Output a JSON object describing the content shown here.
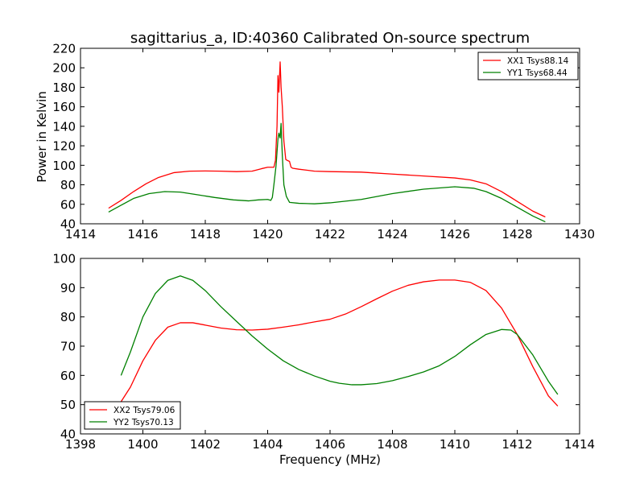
{
  "chart_data": [
    {
      "type": "line",
      "title": "sagittarius_a, ID:40360 Calibrated On-source spectrum",
      "xlabel": "",
      "ylabel": "Power in Kelvin",
      "xlim": [
        1414,
        1430
      ],
      "ylim": [
        40,
        220
      ],
      "xticks": [
        1414,
        1416,
        1418,
        1420,
        1422,
        1424,
        1426,
        1428,
        1430
      ],
      "yticks": [
        40,
        60,
        80,
        100,
        120,
        140,
        160,
        180,
        200,
        220
      ],
      "grid": false,
      "legend_position": "top-right",
      "series": [
        {
          "name": "XX1 Tsys88.14",
          "color": "#ff0000",
          "points": [
            [
              1414.9,
              56
            ],
            [
              1415.3,
              64
            ],
            [
              1415.7,
              73
            ],
            [
              1416.1,
              81
            ],
            [
              1416.5,
              87.5
            ],
            [
              1417.0,
              92.5
            ],
            [
              1417.5,
              94
            ],
            [
              1418.0,
              94.2
            ],
            [
              1418.5,
              94
            ],
            [
              1419.0,
              93.5
            ],
            [
              1419.5,
              94
            ],
            [
              1419.8,
              96.5
            ],
            [
              1420.0,
              98
            ],
            [
              1420.2,
              98
            ],
            [
              1420.25,
              105
            ],
            [
              1420.3,
              140
            ],
            [
              1420.33,
              192
            ],
            [
              1420.36,
              175
            ],
            [
              1420.4,
              206
            ],
            [
              1420.43,
              180
            ],
            [
              1420.47,
              160
            ],
            [
              1420.52,
              125
            ],
            [
              1420.58,
              106
            ],
            [
              1420.63,
              105
            ],
            [
              1420.7,
              104
            ],
            [
              1420.75,
              98
            ],
            [
              1420.8,
              97
            ],
            [
              1421.0,
              96
            ],
            [
              1421.5,
              94
            ],
            [
              1422,
              93.5
            ],
            [
              1423,
              93
            ],
            [
              1424,
              91
            ],
            [
              1425,
              89
            ],
            [
              1426,
              87
            ],
            [
              1426.5,
              85
            ],
            [
              1427,
              81
            ],
            [
              1427.5,
              73
            ],
            [
              1428,
              63
            ],
            [
              1428.5,
              53
            ],
            [
              1428.9,
              47
            ]
          ]
        },
        {
          "name": "YY1 Tsys68.44",
          "color": "#008000",
          "points": [
            [
              1414.9,
              52
            ],
            [
              1415.3,
              59
            ],
            [
              1415.7,
              66
            ],
            [
              1416.2,
              71
            ],
            [
              1416.7,
              73
            ],
            [
              1417.2,
              72.5
            ],
            [
              1417.7,
              70
            ],
            [
              1418.3,
              67
            ],
            [
              1418.9,
              64.5
            ],
            [
              1419.4,
              63.5
            ],
            [
              1419.7,
              64.5
            ],
            [
              1420.0,
              65
            ],
            [
              1420.1,
              64
            ],
            [
              1420.15,
              67
            ],
            [
              1420.2,
              80
            ],
            [
              1420.27,
              100
            ],
            [
              1420.33,
              127
            ],
            [
              1420.36,
              133
            ],
            [
              1420.4,
              128
            ],
            [
              1420.43,
              143
            ],
            [
              1420.47,
              110
            ],
            [
              1420.52,
              80
            ],
            [
              1420.6,
              68
            ],
            [
              1420.7,
              62
            ],
            [
              1421.0,
              61
            ],
            [
              1421.5,
              60.5
            ],
            [
              1422,
              61.5
            ],
            [
              1423,
              65
            ],
            [
              1424,
              71
            ],
            [
              1425,
              75.5
            ],
            [
              1426,
              78
            ],
            [
              1426.6,
              76.5
            ],
            [
              1427,
              73
            ],
            [
              1427.5,
              66
            ],
            [
              1428,
              57
            ],
            [
              1428.5,
              48
            ],
            [
              1428.9,
              42
            ]
          ]
        }
      ]
    },
    {
      "type": "line",
      "title": "",
      "xlabel": "Frequency (MHz)",
      "ylabel": "",
      "xlim": [
        1398,
        1414
      ],
      "ylim": [
        40,
        100
      ],
      "xticks": [
        1398,
        1400,
        1402,
        1404,
        1406,
        1408,
        1410,
        1412,
        1414
      ],
      "yticks": [
        40,
        50,
        60,
        70,
        80,
        90,
        100
      ],
      "grid": false,
      "legend_position": "bottom-left",
      "series": [
        {
          "name": "XX2 Tsys79.06",
          "color": "#ff0000",
          "points": [
            [
              1399.3,
              51
            ],
            [
              1399.6,
              56
            ],
            [
              1400.0,
              65
            ],
            [
              1400.4,
              72
            ],
            [
              1400.8,
              76.5
            ],
            [
              1401.2,
              78
            ],
            [
              1401.6,
              78
            ],
            [
              1402,
              77.2
            ],
            [
              1402.5,
              76.2
            ],
            [
              1403,
              75.6
            ],
            [
              1403.5,
              75.5
            ],
            [
              1404,
              75.8
            ],
            [
              1404.5,
              76.5
            ],
            [
              1405,
              77.3
            ],
            [
              1405.5,
              78.3
            ],
            [
              1406,
              79.2
            ],
            [
              1406.5,
              81
            ],
            [
              1407,
              83.5
            ],
            [
              1407.5,
              86.2
            ],
            [
              1408,
              88.8
            ],
            [
              1408.5,
              90.8
            ],
            [
              1409,
              92
            ],
            [
              1409.5,
              92.6
            ],
            [
              1410,
              92.6
            ],
            [
              1410.5,
              91.8
            ],
            [
              1411,
              89
            ],
            [
              1411.5,
              83
            ],
            [
              1412,
              74
            ],
            [
              1412.5,
              63
            ],
            [
              1413,
              53
            ],
            [
              1413.3,
              49.5
            ]
          ]
        },
        {
          "name": "YY2 Tsys70.13",
          "color": "#008000",
          "points": [
            [
              1399.3,
              60
            ],
            [
              1399.6,
              68
            ],
            [
              1400.0,
              80
            ],
            [
              1400.4,
              88
            ],
            [
              1400.8,
              92.5
            ],
            [
              1401.2,
              94
            ],
            [
              1401.6,
              92.5
            ],
            [
              1402,
              89
            ],
            [
              1402.5,
              83.5
            ],
            [
              1403,
              78.5
            ],
            [
              1403.5,
              73.5
            ],
            [
              1404,
              69
            ],
            [
              1404.5,
              65
            ],
            [
              1405,
              62
            ],
            [
              1405.5,
              59.8
            ],
            [
              1406,
              58
            ],
            [
              1406.3,
              57.3
            ],
            [
              1406.7,
              56.8
            ],
            [
              1407,
              56.8
            ],
            [
              1407.5,
              57.2
            ],
            [
              1408,
              58.2
            ],
            [
              1408.5,
              59.6
            ],
            [
              1409,
              61.2
            ],
            [
              1409.5,
              63.3
            ],
            [
              1410,
              66.5
            ],
            [
              1410.5,
              70.5
            ],
            [
              1411,
              74
            ],
            [
              1411.5,
              75.7
            ],
            [
              1411.8,
              75.5
            ],
            [
              1412,
              74
            ],
            [
              1412.5,
              67
            ],
            [
              1413,
              58
            ],
            [
              1413.3,
              53.5
            ]
          ]
        }
      ]
    }
  ]
}
